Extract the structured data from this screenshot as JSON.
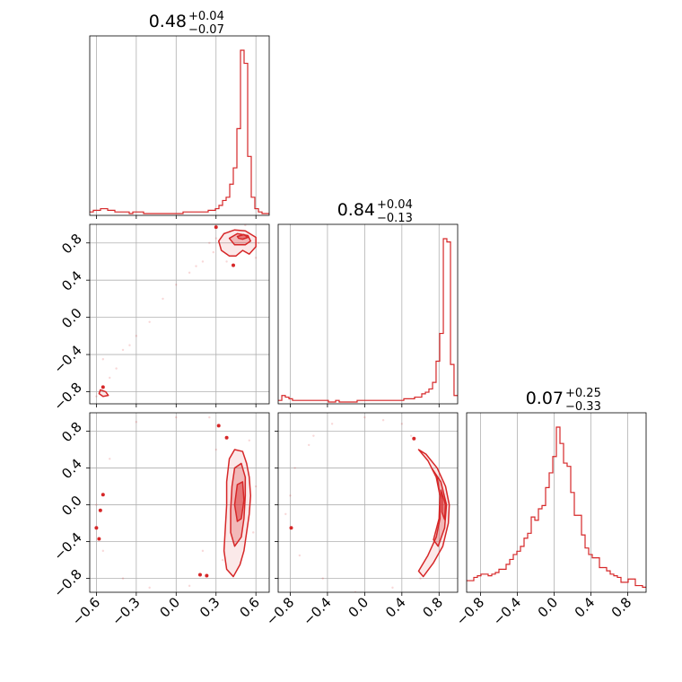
{
  "chart_data": {
    "type": "corner",
    "color": "#d62728",
    "grid": true,
    "titles": [
      {
        "median": "0.48",
        "upper": "+0.04",
        "lower": "−0.07"
      },
      {
        "median": "0.84",
        "upper": "+0.04",
        "lower": "−0.13"
      },
      {
        "median": "0.07",
        "upper": "+0.25",
        "lower": "−0.33"
      }
    ],
    "params": [
      {
        "range": [
          -0.65,
          0.7
        ],
        "ticks": [
          -0.6,
          -0.3,
          0.0,
          0.3,
          0.6
        ],
        "tick_labels": [
          "−0.6",
          "−0.3",
          "0.0",
          "0.3",
          "0.6"
        ]
      },
      {
        "range": [
          -0.93,
          1.0
        ],
        "ticks": [
          -0.8,
          -0.4,
          0.0,
          0.4,
          0.8
        ],
        "tick_labels": [
          "−0.8",
          "−0.4",
          "0.0",
          "0.4",
          "0.8"
        ]
      },
      {
        "range": [
          -0.95,
          1.0
        ],
        "ticks": [
          -0.8,
          -0.4,
          0.0,
          0.4,
          0.8
        ],
        "tick_labels": [
          "−0.8",
          "−0.4",
          "0.0",
          "0.4",
          "0.8"
        ]
      }
    ],
    "histograms": [
      {
        "bin_edges": [
          -0.65,
          -0.623,
          -0.596,
          -0.569,
          -0.542,
          -0.515,
          -0.488,
          -0.461,
          -0.434,
          -0.407,
          -0.38,
          -0.353,
          -0.326,
          -0.299,
          -0.272,
          -0.245,
          -0.218,
          -0.191,
          -0.164,
          -0.137,
          -0.11,
          -0.083,
          -0.056,
          -0.029,
          -0.002,
          0.025,
          0.052,
          0.079,
          0.106,
          0.133,
          0.16,
          0.187,
          0.214,
          0.241,
          0.268,
          0.295,
          0.322,
          0.349,
          0.376,
          0.403,
          0.43,
          0.457,
          0.484,
          0.511,
          0.538,
          0.565,
          0.592,
          0.619,
          0.646,
          0.673,
          0.7
        ],
        "counts": [
          1,
          2,
          2,
          3,
          3,
          2,
          2,
          1,
          1,
          1,
          1,
          0,
          1,
          1,
          1,
          0,
          0,
          0,
          0,
          0,
          0,
          0,
          0,
          0,
          0,
          0,
          1,
          1,
          1,
          1,
          1,
          1,
          1,
          2,
          2,
          3,
          5,
          8,
          10,
          18,
          28,
          52,
          100,
          92,
          35,
          10,
          3,
          1,
          0,
          0
        ]
      },
      {
        "bin_edges": [
          -0.93,
          -0.891,
          -0.853,
          -0.814,
          -0.776,
          -0.737,
          -0.698,
          -0.66,
          -0.621,
          -0.583,
          -0.544,
          -0.505,
          -0.467,
          -0.428,
          -0.39,
          -0.351,
          -0.312,
          -0.274,
          -0.235,
          -0.197,
          -0.158,
          -0.119,
          -0.081,
          -0.042,
          -0.004,
          0.035,
          0.074,
          0.112,
          0.151,
          0.189,
          0.228,
          0.267,
          0.305,
          0.344,
          0.382,
          0.421,
          0.46,
          0.498,
          0.537,
          0.575,
          0.614,
          0.653,
          0.691,
          0.73,
          0.768,
          0.807,
          0.846,
          0.884,
          0.923,
          0.961,
          1.0
        ],
        "counts": [
          1,
          4,
          3,
          2,
          1,
          1,
          1,
          1,
          1,
          1,
          1,
          1,
          1,
          1,
          0,
          0,
          1,
          0,
          0,
          0,
          0,
          0,
          1,
          1,
          1,
          1,
          1,
          1,
          1,
          1,
          1,
          1,
          1,
          1,
          1,
          2,
          2,
          2,
          3,
          3,
          5,
          6,
          8,
          12,
          25,
          42,
          100,
          98,
          23,
          4
        ]
      },
      {
        "bin_edges": [
          -0.95,
          -0.911,
          -0.872,
          -0.833,
          -0.794,
          -0.755,
          -0.716,
          -0.677,
          -0.638,
          -0.599,
          -0.56,
          -0.521,
          -0.482,
          -0.443,
          -0.404,
          -0.365,
          -0.326,
          -0.287,
          -0.248,
          -0.209,
          -0.17,
          -0.131,
          -0.092,
          -0.053,
          -0.014,
          0.025,
          0.064,
          0.103,
          0.142,
          0.181,
          0.22,
          0.259,
          0.298,
          0.337,
          0.376,
          0.415,
          0.454,
          0.493,
          0.532,
          0.571,
          0.61,
          0.649,
          0.688,
          0.727,
          0.766,
          0.805,
          0.844,
          0.883,
          0.922,
          0.961,
          1.0
        ],
        "counts": [
          6,
          6,
          8,
          9,
          10,
          10,
          9,
          10,
          11,
          13,
          13,
          16,
          19,
          22,
          24,
          27,
          32,
          35,
          45,
          43,
          50,
          52,
          63,
          72,
          82,
          100,
          90,
          78,
          76,
          60,
          46,
          46,
          34,
          26,
          22,
          20,
          20,
          14,
          14,
          12,
          10,
          9,
          8,
          5,
          5,
          7,
          7,
          3,
          3,
          2
        ]
      }
    ],
    "pairs": [
      {
        "x_param": 0,
        "y_param": 1,
        "contours": [
          {
            "level": "outer",
            "points": [
              [
                0.32,
                0.82
              ],
              [
                0.36,
                0.9
              ],
              [
                0.44,
                0.94
              ],
              [
                0.52,
                0.93
              ],
              [
                0.6,
                0.86
              ],
              [
                0.6,
                0.76
              ],
              [
                0.55,
                0.68
              ],
              [
                0.5,
                0.72
              ],
              [
                0.45,
                0.66
              ],
              [
                0.4,
                0.66
              ],
              [
                0.34,
                0.72
              ]
            ]
          },
          {
            "level": "middle",
            "points": [
              [
                0.4,
                0.85
              ],
              [
                0.46,
                0.9
              ],
              [
                0.54,
                0.88
              ],
              [
                0.56,
                0.82
              ],
              [
                0.52,
                0.78
              ],
              [
                0.44,
                0.78
              ]
            ]
          },
          {
            "level": "inner",
            "points": [
              [
                0.46,
                0.87
              ],
              [
                0.51,
                0.89
              ],
              [
                0.54,
                0.86
              ],
              [
                0.5,
                0.84
              ],
              [
                0.47,
                0.85
              ]
            ]
          },
          {
            "level": "outer",
            "points": [
              [
                -0.57,
                -0.78
              ],
              [
                -0.53,
                -0.8
              ],
              [
                -0.51,
                -0.84
              ],
              [
                -0.55,
                -0.85
              ],
              [
                -0.58,
                -0.82
              ]
            ]
          }
        ],
        "blobs": [
          [
            0.3,
            0.97
          ],
          [
            0.43,
            0.56
          ],
          [
            -0.55,
            -0.75
          ]
        ],
        "samples": [
          [
            0.52,
            0.99
          ],
          [
            0.6,
            0.64
          ],
          [
            0.2,
            0.6
          ],
          [
            0.1,
            0.48
          ],
          [
            0.3,
            0.85
          ],
          [
            0.25,
            0.8
          ],
          [
            -0.1,
            0.2
          ],
          [
            0.0,
            0.35
          ],
          [
            -0.2,
            -0.05
          ],
          [
            -0.3,
            -0.2
          ],
          [
            -0.35,
            -0.3
          ],
          [
            -0.45,
            -0.55
          ],
          [
            -0.5,
            -0.65
          ],
          [
            -0.55,
            -0.45
          ],
          [
            -0.6,
            -0.85
          ],
          [
            -0.4,
            -0.35
          ],
          [
            0.15,
            0.55
          ],
          [
            0.28,
            0.7
          ],
          [
            0.62,
            0.8
          ],
          [
            0.38,
            0.6
          ]
        ]
      },
      {
        "x_param": 0,
        "y_param": 2,
        "contours": [
          {
            "level": "outer",
            "points": [
              [
                0.4,
                0.5
              ],
              [
                0.44,
                0.6
              ],
              [
                0.5,
                0.58
              ],
              [
                0.53,
                0.45
              ],
              [
                0.55,
                0.3
              ],
              [
                0.56,
                0.1
              ],
              [
                0.55,
                -0.1
              ],
              [
                0.53,
                -0.3
              ],
              [
                0.51,
                -0.5
              ],
              [
                0.48,
                -0.65
              ],
              [
                0.43,
                -0.78
              ],
              [
                0.38,
                -0.7
              ],
              [
                0.36,
                -0.5
              ],
              [
                0.37,
                -0.25
              ],
              [
                0.38,
                0.0
              ],
              [
                0.38,
                0.25
              ]
            ]
          },
          {
            "level": "middle",
            "points": [
              [
                0.44,
                0.4
              ],
              [
                0.49,
                0.45
              ],
              [
                0.52,
                0.3
              ],
              [
                0.52,
                0.1
              ],
              [
                0.51,
                -0.15
              ],
              [
                0.49,
                -0.35
              ],
              [
                0.44,
                -0.45
              ],
              [
                0.41,
                -0.3
              ],
              [
                0.41,
                -0.05
              ],
              [
                0.42,
                0.2
              ]
            ]
          },
          {
            "level": "inner",
            "points": [
              [
                0.46,
                0.22
              ],
              [
                0.5,
                0.25
              ],
              [
                0.51,
                0.05
              ],
              [
                0.49,
                -0.15
              ],
              [
                0.46,
                -0.18
              ],
              [
                0.44,
                0.0
              ]
            ]
          }
        ],
        "blobs": [
          [
            0.32,
            0.86
          ],
          [
            0.38,
            0.73
          ],
          [
            -0.55,
            0.11
          ],
          [
            -0.57,
            -0.06
          ],
          [
            -0.6,
            -0.25
          ],
          [
            -0.58,
            -0.37
          ],
          [
            0.18,
            -0.76
          ],
          [
            0.23,
            -0.77
          ]
        ],
        "samples": [
          [
            0.3,
            0.6
          ],
          [
            0.35,
            -0.6
          ],
          [
            0.6,
            0.2
          ],
          [
            0.58,
            -0.3
          ],
          [
            -0.5,
            0.5
          ],
          [
            -0.6,
            0.0
          ],
          [
            -0.55,
            -0.5
          ],
          [
            -0.4,
            -0.8
          ],
          [
            -0.3,
            0.9
          ],
          [
            0.1,
            -0.88
          ],
          [
            0.0,
            0.95
          ],
          [
            0.25,
            0.95
          ],
          [
            0.2,
            -0.5
          ],
          [
            -0.2,
            -0.9
          ],
          [
            0.55,
            0.7
          ]
        ]
      },
      {
        "x_param": 1,
        "y_param": 2,
        "contours": [
          {
            "level": "outer",
            "points": [
              [
                0.58,
                0.6
              ],
              [
                0.66,
                0.55
              ],
              [
                0.78,
                0.4
              ],
              [
                0.87,
                0.2
              ],
              [
                0.91,
                0.0
              ],
              [
                0.9,
                -0.2
              ],
              [
                0.84,
                -0.45
              ],
              [
                0.74,
                -0.63
              ],
              [
                0.63,
                -0.78
              ],
              [
                0.58,
                -0.72
              ],
              [
                0.68,
                -0.55
              ],
              [
                0.77,
                -0.35
              ],
              [
                0.81,
                -0.15
              ],
              [
                0.81,
                0.1
              ],
              [
                0.77,
                0.3
              ],
              [
                0.68,
                0.48
              ]
            ]
          },
          {
            "level": "middle",
            "points": [
              [
                0.72,
                0.4
              ],
              [
                0.82,
                0.25
              ],
              [
                0.88,
                0.0
              ],
              [
                0.86,
                -0.25
              ],
              [
                0.79,
                -0.45
              ],
              [
                0.74,
                -0.38
              ],
              [
                0.8,
                -0.15
              ],
              [
                0.81,
                0.1
              ],
              [
                0.78,
                0.3
              ]
            ]
          },
          {
            "level": "inner",
            "points": [
              [
                0.82,
                0.16
              ],
              [
                0.87,
                0.0
              ],
              [
                0.86,
                -0.16
              ],
              [
                0.83,
                -0.08
              ],
              [
                0.83,
                0.06
              ]
            ]
          }
        ],
        "blobs": [
          [
            0.53,
            0.72
          ],
          [
            -0.79,
            -0.25
          ]
        ],
        "samples": [
          [
            -0.8,
            0.1
          ],
          [
            -0.75,
            0.4
          ],
          [
            -0.6,
            0.65
          ],
          [
            -0.35,
            0.88
          ],
          [
            0.0,
            0.95
          ],
          [
            0.4,
            0.88
          ],
          [
            -0.7,
            -0.55
          ],
          [
            -0.45,
            -0.8
          ],
          [
            -0.1,
            -0.95
          ],
          [
            0.3,
            -0.9
          ],
          [
            0.5,
            0.75
          ],
          [
            -0.85,
            -0.1
          ],
          [
            0.6,
            -0.8
          ],
          [
            0.2,
            0.92
          ],
          [
            -0.55,
            0.75
          ]
        ]
      }
    ]
  }
}
